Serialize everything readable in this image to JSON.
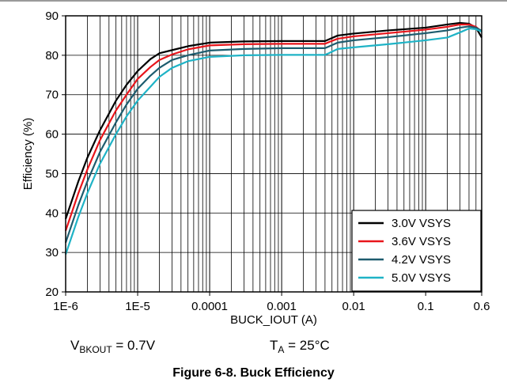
{
  "chart_data": {
    "type": "line",
    "xlabel": "BUCK_IOUT (A)",
    "ylabel": "Efficiency (%)",
    "x_scale": "log",
    "xlim": [
      1e-06,
      0.6
    ],
    "ylim": [
      20,
      90
    ],
    "x_ticks": [
      {
        "value": 1e-06,
        "label": "1E-6"
      },
      {
        "value": 1e-05,
        "label": "1E-5"
      },
      {
        "value": 0.0001,
        "label": "0.0001"
      },
      {
        "value": 0.001,
        "label": "0.001"
      },
      {
        "value": 0.01,
        "label": "0.01"
      },
      {
        "value": 0.1,
        "label": "0.1"
      },
      {
        "value": 0.6,
        "label": "0.6"
      }
    ],
    "y_ticks": [
      20,
      30,
      40,
      50,
      60,
      70,
      80,
      90
    ],
    "grid": true,
    "legend_position": "bottom-right",
    "series": [
      {
        "name": "3.0V VSYS",
        "color": "#000000",
        "x": [
          1e-06,
          1.5e-06,
          2e-06,
          3e-06,
          5e-06,
          7e-06,
          1e-05,
          1.5e-05,
          2e-05,
          3e-05,
          5e-05,
          0.0001,
          0.0003,
          0.001,
          0.002,
          0.004,
          0.0045,
          0.006,
          0.01,
          0.03,
          0.1,
          0.2,
          0.3,
          0.4,
          0.5,
          0.6
        ],
        "y": [
          38.5,
          48,
          54,
          61,
          68.5,
          72.5,
          76,
          79,
          80.5,
          81.3,
          82.3,
          83.2,
          83.5,
          83.6,
          83.6,
          83.6,
          84.0,
          85.0,
          85.5,
          86.3,
          87.0,
          87.8,
          88.2,
          88.0,
          87.0,
          84.5
        ]
      },
      {
        "name": "3.6V VSYS",
        "color": "#e8151b",
        "x": [
          1e-06,
          1.5e-06,
          2e-06,
          3e-06,
          5e-06,
          7e-06,
          1e-05,
          1.5e-05,
          2e-05,
          3e-05,
          5e-05,
          0.0001,
          0.0003,
          0.001,
          0.002,
          0.004,
          0.0045,
          0.006,
          0.01,
          0.03,
          0.1,
          0.2,
          0.3,
          0.4,
          0.5,
          0.6
        ],
        "y": [
          35.5,
          45,
          51,
          58.5,
          66,
          70,
          74,
          77,
          78.8,
          80.2,
          81.5,
          82.5,
          82.8,
          82.9,
          82.9,
          82.9,
          83.3,
          84.2,
          84.8,
          85.6,
          86.5,
          87.2,
          87.8,
          87.8,
          87.2,
          86.0
        ]
      },
      {
        "name": "4.2V VSYS",
        "color": "#1d5c6e",
        "x": [
          1e-06,
          1.5e-06,
          2e-06,
          3e-06,
          5e-06,
          7e-06,
          1e-05,
          1.5e-05,
          2e-05,
          3e-05,
          5e-05,
          0.0001,
          0.0003,
          0.001,
          0.002,
          0.004,
          0.0045,
          0.006,
          0.01,
          0.03,
          0.1,
          0.2,
          0.3,
          0.4,
          0.5,
          0.6
        ],
        "y": [
          32.5,
          42,
          48,
          55.5,
          63,
          67.5,
          71.5,
          74.8,
          76.8,
          78.8,
          80.0,
          81.2,
          81.6,
          81.8,
          81.8,
          81.8,
          82.2,
          83.2,
          83.8,
          84.6,
          85.6,
          86.3,
          87.0,
          87.3,
          87.0,
          86.2
        ]
      },
      {
        "name": "5.0V VSYS",
        "color": "#1fb3c6",
        "x": [
          1e-06,
          1.5e-06,
          2e-06,
          3e-06,
          5e-06,
          7e-06,
          1e-05,
          1.5e-05,
          2e-05,
          3e-05,
          5e-05,
          0.0001,
          0.0003,
          0.001,
          0.002,
          0.004,
          0.0045,
          0.006,
          0.01,
          0.03,
          0.1,
          0.2,
          0.3,
          0.4,
          0.5,
          0.6
        ],
        "y": [
          29.5,
          39,
          45,
          52.5,
          60,
          64.5,
          68.5,
          72,
          74.5,
          76.8,
          78.5,
          79.6,
          80.0,
          80.1,
          80.1,
          80.1,
          80.5,
          81.6,
          82.0,
          82.8,
          83.8,
          84.5,
          85.8,
          86.8,
          86.6,
          86.0
        ]
      }
    ]
  },
  "conditions": {
    "vbkout_main": "V",
    "vbkout_sub": "BKOUT",
    "vbkout_value": " = 0.7V",
    "ta_main": "T",
    "ta_sub": "A",
    "ta_value": " = 25°C"
  },
  "caption": "Figure 6-8. Buck Efficiency"
}
